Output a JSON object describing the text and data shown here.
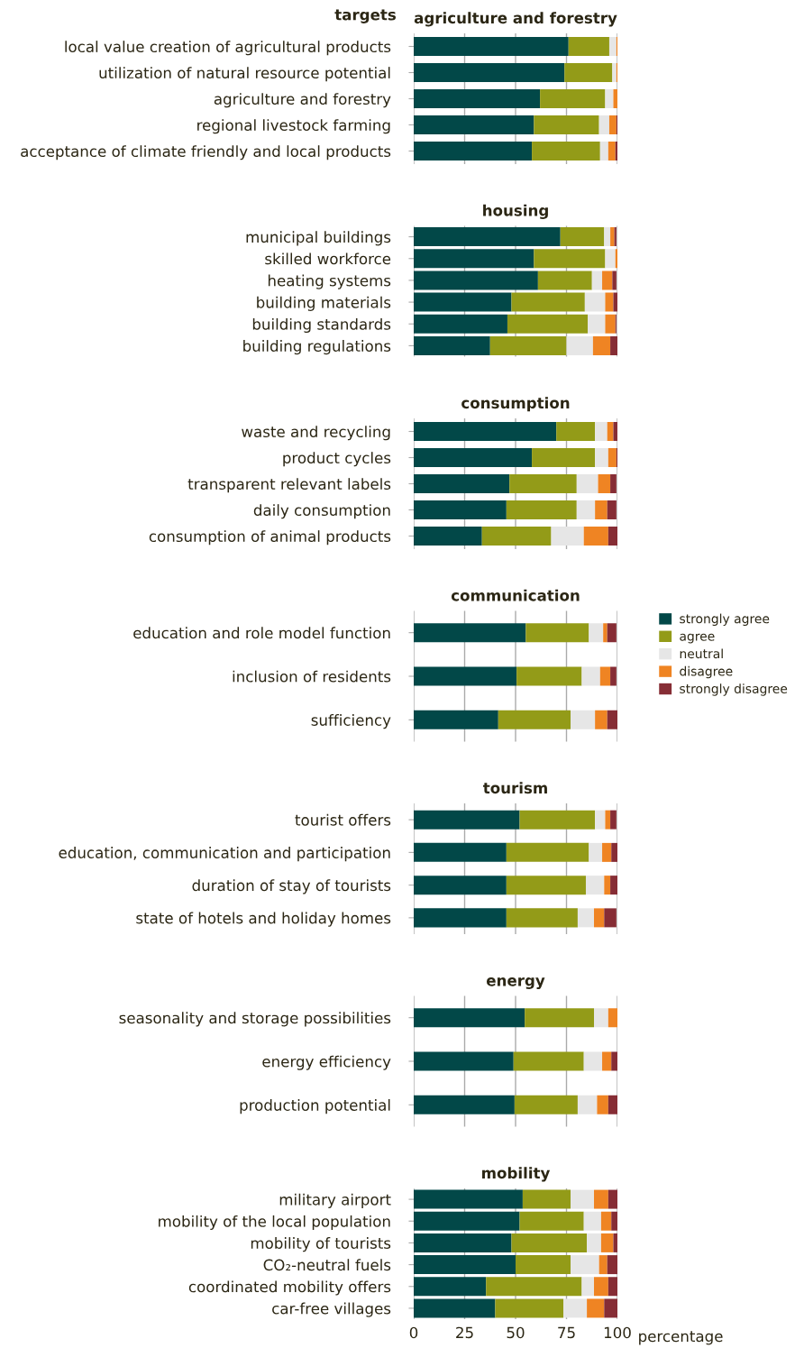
{
  "chart_data": [
    {
      "type": "bar",
      "orientation": "horizontal",
      "stacked": true,
      "title": "agriculture and forestry",
      "ylabel": "targets",
      "categories": [
        "local value creation of agricultural products",
        "utilization of natural resource potential",
        "agriculture and forestry",
        "regional livestock farming",
        "acceptance of climate friendly and local products"
      ],
      "series": [
        {
          "color": "#024848",
          "values": [
            76,
            74,
            62,
            59,
            58
          ]
        },
        {
          "color": "#939b18",
          "values": [
            20,
            23.5,
            32,
            32,
            33.5
          ]
        },
        {
          "color": "#e6e6e6",
          "values": [
            3.5,
            2,
            4,
            5,
            4
          ]
        },
        {
          "color": "#ef8423",
          "values": [
            0.5,
            0.5,
            2,
            3.5,
            3.5
          ]
        },
        {
          "color": "#862d35",
          "values": [
            0,
            0,
            0,
            0.5,
            1
          ]
        }
      ],
      "xlim": [
        0,
        100
      ],
      "xticks": [
        0,
        25,
        50,
        75,
        100
      ],
      "grid": "x",
      "tick_labels": "y"
    },
    {
      "type": "bar",
      "orientation": "horizontal",
      "stacked": true,
      "title": "housing",
      "categories": [
        "municipal buildings",
        "skilled workforce",
        "heating systems",
        "building materials",
        "building standards",
        "building regulations"
      ],
      "series": [
        {
          "color": "#024848",
          "values": [
            72,
            59,
            61,
            48,
            46,
            37.5
          ]
        },
        {
          "color": "#939b18",
          "values": [
            21.5,
            35,
            26.5,
            36,
            39.5,
            37.5
          ]
        },
        {
          "color": "#e6e6e6",
          "values": [
            3,
            5,
            5,
            10,
            8.5,
            13
          ]
        },
        {
          "color": "#ef8423",
          "values": [
            2,
            1,
            5,
            4,
            5,
            8.5
          ]
        },
        {
          "color": "#862d35",
          "values": [
            1,
            0,
            2,
            2,
            0.5,
            3.5
          ]
        }
      ],
      "xlim": [
        0,
        100
      ],
      "xticks": [
        0,
        25,
        50,
        75,
        100
      ],
      "grid": "x",
      "tick_labels": "y"
    },
    {
      "type": "bar",
      "orientation": "horizontal",
      "stacked": true,
      "title": "consumption",
      "categories": [
        "waste and recycling",
        "product cycles",
        "transparent relevant labels",
        "daily consumption",
        "consumption of animal products"
      ],
      "series": [
        {
          "color": "#024848",
          "values": [
            70,
            58,
            47,
            45.5,
            33.5
          ]
        },
        {
          "color": "#939b18",
          "values": [
            19,
            31,
            33,
            34.5,
            34
          ]
        },
        {
          "color": "#e6e6e6",
          "values": [
            6,
            6.5,
            10.5,
            9,
            16
          ]
        },
        {
          "color": "#ef8423",
          "values": [
            3,
            4,
            6,
            6,
            12
          ]
        },
        {
          "color": "#862d35",
          "values": [
            2,
            0.5,
            3,
            4.5,
            4.5
          ]
        }
      ],
      "xlim": [
        0,
        100
      ],
      "xticks": [
        0,
        25,
        50,
        75,
        100
      ],
      "grid": "x",
      "tick_labels": "y"
    },
    {
      "type": "bar",
      "orientation": "horizontal",
      "stacked": true,
      "title": "communication",
      "categories": [
        "education and role model function",
        "inclusion of residents",
        "sufficiency"
      ],
      "series": [
        {
          "name": "strongly agree",
          "color": "#024848",
          "values": [
            55,
            50.5,
            41.5
          ]
        },
        {
          "name": "agree",
          "color": "#939b18",
          "values": [
            31,
            32,
            35.5
          ]
        },
        {
          "name": "neutral",
          "color": "#e6e6e6",
          "values": [
            7,
            9,
            12
          ]
        },
        {
          "name": "disagree",
          "color": "#ef8423",
          "values": [
            2,
            5,
            6
          ]
        },
        {
          "name": "strongly disagree",
          "color": "#862d35",
          "values": [
            4.5,
            3,
            5
          ]
        }
      ],
      "xlim": [
        0,
        100
      ],
      "xticks": [
        0,
        25,
        50,
        75,
        100
      ],
      "grid": "x",
      "tick_labels": "y",
      "legend": "right"
    },
    {
      "type": "bar",
      "orientation": "horizontal",
      "stacked": true,
      "title": "tourism",
      "categories": [
        "tourist offers",
        "education, communication and participation",
        "duration of stay of tourists",
        "state of hotels and holiday homes"
      ],
      "series": [
        {
          "color": "#024848",
          "values": [
            52,
            45.5,
            45.5,
            45.5
          ]
        },
        {
          "color": "#939b18",
          "values": [
            37,
            40.5,
            39,
            35
          ]
        },
        {
          "color": "#e6e6e6",
          "values": [
            5,
            6.5,
            9,
            8
          ]
        },
        {
          "color": "#ef8423",
          "values": [
            2.5,
            4.5,
            3,
            5
          ]
        },
        {
          "color": "#862d35",
          "values": [
            3,
            3,
            3.5,
            6
          ]
        }
      ],
      "xlim": [
        0,
        100
      ],
      "xticks": [
        0,
        25,
        50,
        75,
        100
      ],
      "grid": "x",
      "tick_labels": "y"
    },
    {
      "type": "bar",
      "orientation": "horizontal",
      "stacked": true,
      "title": "energy",
      "categories": [
        "seasonality and storage possibilities",
        "energy efficiency",
        "production potential"
      ],
      "series": [
        {
          "color": "#024848",
          "values": [
            54.5,
            49,
            49.5
          ]
        },
        {
          "color": "#939b18",
          "values": [
            34,
            34.5,
            31
          ]
        },
        {
          "color": "#e6e6e6",
          "values": [
            7,
            9,
            9.5
          ]
        },
        {
          "color": "#ef8423",
          "values": [
            4.5,
            4.5,
            5.5
          ]
        },
        {
          "color": "#862d35",
          "values": [
            0,
            3,
            4.5
          ]
        }
      ],
      "xlim": [
        0,
        100
      ],
      "xticks": [
        0,
        25,
        50,
        75,
        100
      ],
      "grid": "x",
      "tick_labels": "y"
    },
    {
      "type": "bar",
      "orientation": "horizontal",
      "stacked": true,
      "title": "mobility",
      "xlabel": "percentage",
      "categories": [
        "military airport",
        "mobility of the local population",
        "mobility of tourists",
        "CO₂-neutral fuels",
        "coordinated mobility offers",
        "car-free villages"
      ],
      "series": [
        {
          "color": "#024848",
          "values": [
            53.5,
            52,
            48,
            50,
            35.5,
            40
          ]
        },
        {
          "color": "#939b18",
          "values": [
            23.5,
            31.5,
            37,
            27,
            47,
            33.5
          ]
        },
        {
          "color": "#e6e6e6",
          "values": [
            11.5,
            8.5,
            7,
            14,
            6,
            11.5
          ]
        },
        {
          "color": "#ef8423",
          "values": [
            7,
            5,
            6,
            4,
            7,
            8.5
          ]
        },
        {
          "color": "#862d35",
          "values": [
            4.5,
            3,
            2,
            5,
            4.5,
            6.5
          ]
        }
      ],
      "xlim": [
        0,
        100
      ],
      "xticks": [
        0,
        25,
        50,
        75,
        100
      ],
      "grid": "x"
    }
  ]
}
